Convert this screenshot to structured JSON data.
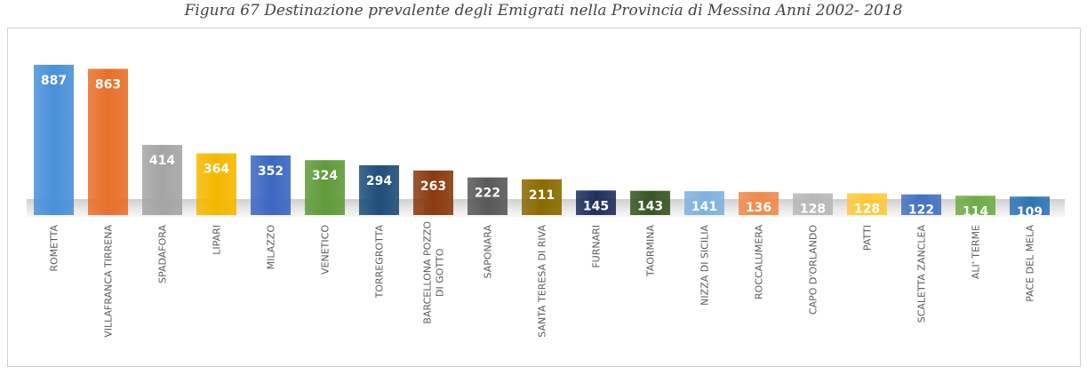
{
  "caption": "Figura 67 Destinazione prevalente degli Emigrati nella Provincia di Messina Anni 2002- 2018",
  "chart_data": {
    "type": "bar",
    "title": "",
    "xlabel": "",
    "ylabel": "",
    "ylim": [
      0,
      900
    ],
    "grid": false,
    "legend": "none",
    "categories": [
      "ROMETTA",
      "VILLAFRANCA TIRRENA",
      "SPADAFORA",
      "LIPARI",
      "MILAZZO",
      "VENETICO",
      "TORREGROTTA",
      "BARCELLONA POZZO DI GOTTO",
      "SAPONARA",
      "SANTA TERESA DI RIVA",
      "FURNARI",
      "TAORMINA",
      "NIZZA DI SICILIA",
      "ROCCALUMERA",
      "CAPO D'ORLANDO",
      "PATTI",
      "SCALETTA ZANCLEA",
      "ALI' TERME",
      "PACE DEL MELA"
    ],
    "values": [
      887,
      863,
      414,
      364,
      352,
      324,
      294,
      263,
      222,
      211,
      145,
      143,
      141,
      136,
      128,
      128,
      122,
      114,
      109
    ],
    "colors": [
      "#4a90d9",
      "#e8702a",
      "#a5a5a5",
      "#f5b800",
      "#3c67c2",
      "#5f9b3a",
      "#1f4e79",
      "#8b3a0f",
      "#595959",
      "#8c6a00",
      "#1f2f5e",
      "#375623",
      "#7fb2e0",
      "#f08a4b",
      "#b8b8b8",
      "#ffc93c",
      "#4472c4",
      "#70ad47",
      "#2e75b6"
    ]
  }
}
